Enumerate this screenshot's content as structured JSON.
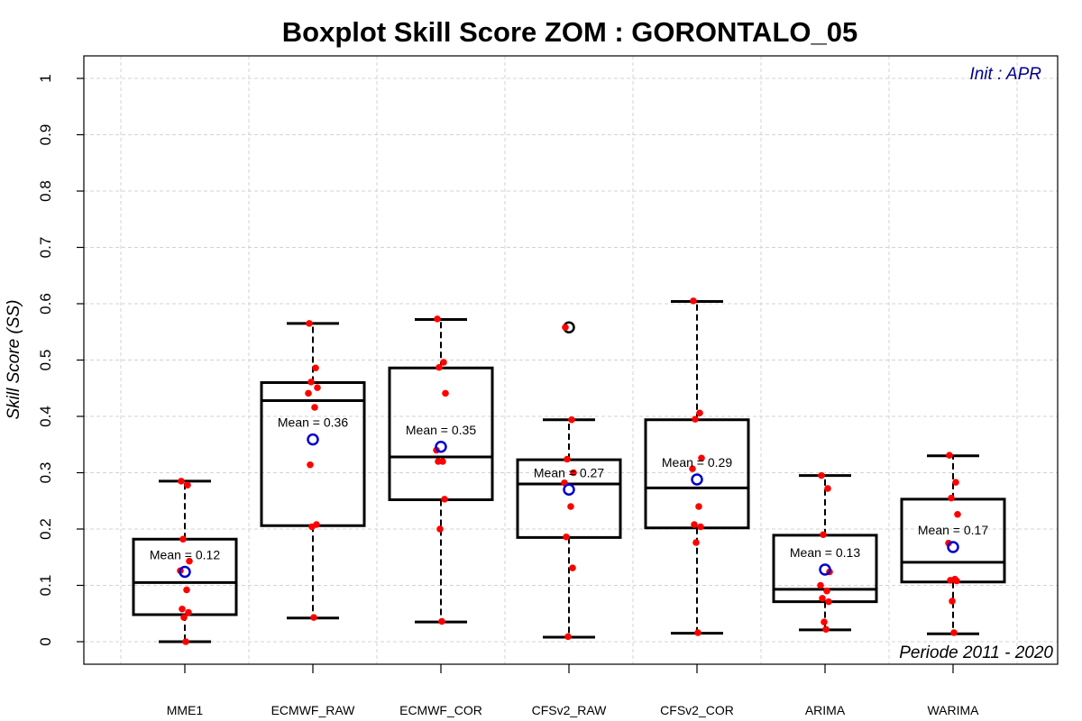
{
  "chart_data": {
    "type": "boxplot",
    "title": "Boxplot Skill Score ZOM : GORONTALO_05",
    "ylabel": "Skill Score (SS)",
    "xlabel": "",
    "ylim": [
      0,
      1
    ],
    "yticks": [
      "0",
      "0.1",
      "0.2",
      "0.3",
      "0.4",
      "0.5",
      "0.6",
      "0.7",
      "0.8",
      "0.9",
      "1"
    ],
    "grid": true,
    "annotation_top_right": "Init : APR",
    "annotation_bottom_right": "Periode 2011 - 2020",
    "colors": {
      "box": "#000000",
      "mean_marker": "#0000cc",
      "points": "#ff0000",
      "grid": "#d3d3d3",
      "annotation": "#00008b"
    },
    "categories": [
      "MME1",
      "ECMWF_RAW",
      "ECMWF_COR",
      "CFSv2_RAW",
      "CFSv2_COR",
      "ARIMA",
      "WARIMA"
    ],
    "boxes": [
      {
        "name": "MME1",
        "whisker_low": 0.0,
        "q1": 0.048,
        "median": 0.105,
        "q3": 0.182,
        "whisker_high": 0.285,
        "outliers": [],
        "mean": 0.124,
        "mean_label": "Mean = 0.12",
        "points": [
          0.285,
          0.278,
          0.182,
          0.143,
          0.126,
          0.092,
          0.058,
          0.052,
          0.043,
          0.0
        ]
      },
      {
        "name": "ECMWF_RAW",
        "whisker_low": 0.042,
        "q1": 0.206,
        "median": 0.428,
        "q3": 0.46,
        "whisker_high": 0.565,
        "outliers": [],
        "mean": 0.359,
        "mean_label": "Mean = 0.36",
        "points": [
          0.565,
          0.486,
          0.461,
          0.451,
          0.441,
          0.416,
          0.314,
          0.208,
          0.204,
          0.043
        ]
      },
      {
        "name": "ECMWF_COR",
        "whisker_low": 0.035,
        "q1": 0.252,
        "median": 0.328,
        "q3": 0.486,
        "whisker_high": 0.572,
        "outliers": [],
        "mean": 0.346,
        "mean_label": "Mean = 0.35",
        "points": [
          0.573,
          0.496,
          0.487,
          0.441,
          0.34,
          0.32,
          0.32,
          0.253,
          0.2,
          0.036
        ]
      },
      {
        "name": "CFSv2_RAW",
        "whisker_low": 0.008,
        "q1": 0.185,
        "median": 0.28,
        "q3": 0.323,
        "whisker_high": 0.394,
        "outliers": [
          0.558
        ],
        "mean": 0.27,
        "mean_label": "Mean = 0.27",
        "points": [
          0.558,
          0.394,
          0.324,
          0.3,
          0.282,
          0.24,
          0.186,
          0.131,
          0.009
        ]
      },
      {
        "name": "CFSv2_COR",
        "whisker_low": 0.015,
        "q1": 0.202,
        "median": 0.273,
        "q3": 0.394,
        "whisker_high": 0.604,
        "outliers": [],
        "mean": 0.288,
        "mean_label": "Mean = 0.29",
        "points": [
          0.605,
          0.406,
          0.395,
          0.326,
          0.307,
          0.24,
          0.208,
          0.204,
          0.176,
          0.016
        ]
      },
      {
        "name": "ARIMA",
        "whisker_low": 0.021,
        "q1": 0.071,
        "median": 0.093,
        "q3": 0.189,
        "whisker_high": 0.295,
        "outliers": [],
        "mean": 0.128,
        "mean_label": "Mean = 0.13",
        "points": [
          0.295,
          0.272,
          0.19,
          0.124,
          0.1,
          0.09,
          0.077,
          0.071,
          0.035,
          0.022
        ]
      },
      {
        "name": "WARIMA",
        "whisker_low": 0.014,
        "q1": 0.106,
        "median": 0.141,
        "q3": 0.253,
        "whisker_high": 0.33,
        "outliers": [],
        "mean": 0.168,
        "mean_label": "Mean = 0.17",
        "points": [
          0.331,
          0.283,
          0.255,
          0.226,
          0.175,
          0.111,
          0.109,
          0.108,
          0.072,
          0.016
        ]
      }
    ]
  }
}
